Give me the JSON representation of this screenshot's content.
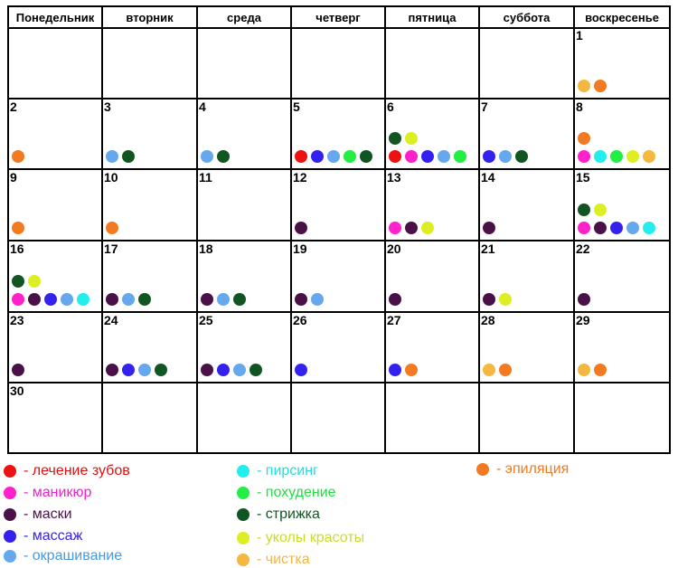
{
  "weekdays": [
    "Понедельник",
    "вторник",
    "среда",
    "четверг",
    "пятница",
    "суббота",
    "воскресенье"
  ],
  "colors": {
    "teeth": "#ee1111",
    "manicure": "#ff22cc",
    "masks": "#4a1048",
    "massage": "#3322ee",
    "coloring": "#66a8ee",
    "piercing": "#22eeee",
    "weightloss": "#22ee44",
    "haircut": "#115522",
    "beautyshots": "#ddee22",
    "cleansing": "#f4b840",
    "epilation": "#f47a22"
  },
  "legend": [
    {
      "key": "teeth",
      "label": "- лечение зубов",
      "text_color": "#dd1111"
    },
    {
      "key": "manicure",
      "label": "- маникюр",
      "text_color": "#ee22cc"
    },
    {
      "key": "masks",
      "label": "- маски",
      "text_color": "#4a1048"
    },
    {
      "key": "massage",
      "label": "- массаж",
      "text_color": "#3322ee"
    },
    {
      "key": "coloring",
      "label": "- окрашивание",
      "text_color": "#4a98dd"
    },
    {
      "key": "piercing",
      "label": "- пирсинг",
      "text_color": "#22dddd"
    },
    {
      "key": "weightloss",
      "label": "- похудение",
      "text_color": "#22dd44"
    },
    {
      "key": "haircut",
      "label": "- стрижка",
      "text_color": "#115522"
    },
    {
      "key": "beautyshots",
      "label": "- уколы красоты",
      "text_color": "#ccdd22"
    },
    {
      "key": "cleansing",
      "label": "- чистка",
      "text_color": "#f4b840"
    },
    {
      "key": "epilation",
      "label": "- эпиляция",
      "text_color": "#ee7a22"
    }
  ],
  "days": [
    {
      "day": "1",
      "dots": [
        [
          "cleansing",
          "epilation"
        ]
      ]
    },
    {
      "day": "2",
      "dots": [
        [
          "epilation"
        ]
      ]
    },
    {
      "day": "3",
      "dots": [
        [
          "coloring",
          "haircut"
        ]
      ]
    },
    {
      "day": "4",
      "dots": [
        [
          "coloring",
          "haircut"
        ]
      ]
    },
    {
      "day": "5",
      "dots": [
        [
          "teeth",
          "massage",
          "coloring",
          "weightloss",
          "haircut"
        ]
      ]
    },
    {
      "day": "6",
      "dots": [
        [
          "haircut",
          "beautyshots"
        ],
        [
          "teeth",
          "manicure",
          "massage",
          "coloring",
          "weightloss"
        ]
      ]
    },
    {
      "day": "7",
      "dots": [
        [
          "massage",
          "coloring",
          "haircut"
        ]
      ]
    },
    {
      "day": "8",
      "dots": [
        [
          "epilation"
        ],
        [
          "manicure",
          "piercing",
          "weightloss",
          "beautyshots",
          "cleansing"
        ]
      ]
    },
    {
      "day": "9",
      "dots": [
        [
          "epilation"
        ]
      ]
    },
    {
      "day": "10",
      "dots": [
        [
          "epilation"
        ]
      ]
    },
    {
      "day": "11",
      "dots": []
    },
    {
      "day": "12",
      "dots": [
        [
          "masks"
        ]
      ]
    },
    {
      "day": "13",
      "dots": [
        [
          "manicure",
          "masks",
          "beautyshots"
        ]
      ]
    },
    {
      "day": "14",
      "dots": [
        [
          "masks"
        ]
      ]
    },
    {
      "day": "15",
      "dots": [
        [
          "haircut",
          "beautyshots"
        ],
        [
          "manicure",
          "masks",
          "massage",
          "coloring",
          "piercing"
        ]
      ]
    },
    {
      "day": "16",
      "dots": [
        [
          "haircut",
          "beautyshots"
        ],
        [
          "manicure",
          "masks",
          "massage",
          "coloring",
          "piercing"
        ]
      ]
    },
    {
      "day": "17",
      "dots": [
        [
          "masks",
          "coloring",
          "haircut"
        ]
      ]
    },
    {
      "day": "18",
      "dots": [
        [
          "masks",
          "coloring",
          "haircut"
        ]
      ]
    },
    {
      "day": "19",
      "dots": [
        [
          "masks",
          "coloring"
        ]
      ]
    },
    {
      "day": "20",
      "dots": [
        [
          "masks"
        ]
      ]
    },
    {
      "day": "21",
      "dots": [
        [
          "masks",
          "beautyshots"
        ]
      ]
    },
    {
      "day": "22",
      "dots": [
        [
          "masks"
        ]
      ]
    },
    {
      "day": "23",
      "dots": [
        [
          "masks"
        ]
      ]
    },
    {
      "day": "24",
      "dots": [
        [
          "masks",
          "massage",
          "coloring",
          "haircut"
        ]
      ]
    },
    {
      "day": "25",
      "dots": [
        [
          "masks",
          "massage",
          "coloring",
          "haircut"
        ]
      ]
    },
    {
      "day": "26",
      "dots": [
        [
          "massage"
        ]
      ]
    },
    {
      "day": "27",
      "dots": [
        [
          "massage",
          "epilation"
        ]
      ]
    },
    {
      "day": "28",
      "dots": [
        [
          "cleansing",
          "epilation"
        ]
      ]
    },
    {
      "day": "29",
      "dots": [
        [
          "cleansing",
          "epilation"
        ]
      ]
    },
    {
      "day": "30",
      "dots": []
    }
  ],
  "first_weekday_index": 6
}
